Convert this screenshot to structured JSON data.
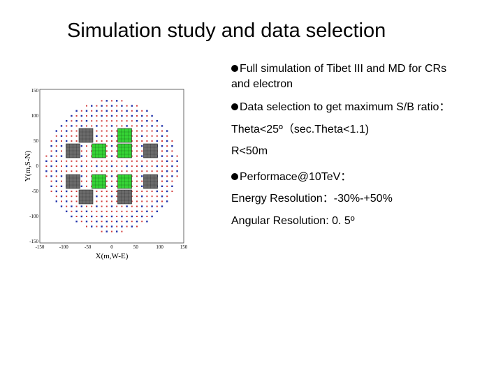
{
  "slide": {
    "title": "Simulation study and data selection",
    "paragraphs": [
      {
        "bullet": true,
        "lines": [
          "Full simulation of Tibet III and MD  for CRs",
          "and electron"
        ]
      },
      {
        "bullet": true,
        "lines": [
          "Data selection to get maximum S/B ratio："
        ]
      },
      {
        "bullet": false,
        "lines": [
          "Theta<25º（sec.Theta<1.1)"
        ]
      },
      {
        "bullet": false,
        "lines": [
          "R<50m"
        ]
      },
      {
        "bullet": true,
        "lines": [
          "Performace@10TeV："
        ]
      },
      {
        "bullet": false,
        "lines": [
          "Energy Resolution：-30%-+50%"
        ]
      },
      {
        "bullet": false,
        "lines": [
          "Angular Resolution: 0. 5º"
        ]
      }
    ]
  },
  "figure": {
    "xlabel": "X(m,W-E)",
    "ylabel": "Y(m,S-N)",
    "x_ticks": [
      "-150",
      "-100",
      "-50",
      "0",
      "50",
      "100",
      "150"
    ],
    "y_ticks": [
      "150",
      "100",
      "50",
      "0",
      "-50",
      "-100",
      "-150"
    ],
    "colors": {
      "md_gray": "#6b6b6b",
      "md_green": "#35d335",
      "array_red": "#d23c3c",
      "array_blue": "#2233aa"
    }
  }
}
